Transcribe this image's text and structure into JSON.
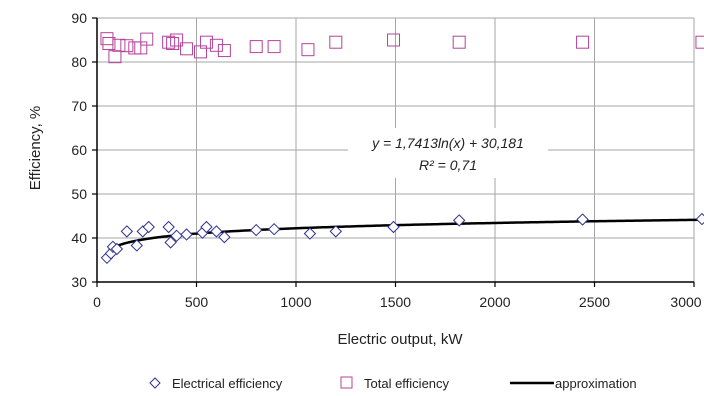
{
  "chart_data": {
    "type": "scatter",
    "xlabel": "Electric output, kW",
    "ylabel": "Efficiency, %",
    "xlim": [
      0,
      3000
    ],
    "ylim": [
      30,
      90
    ],
    "x_ticks": [
      "0",
      "500",
      "1000",
      "1500",
      "2000",
      "2500",
      "3000"
    ],
    "y_ticks": [
      "30",
      "40",
      "50",
      "60",
      "70",
      "80",
      "90"
    ],
    "grid": true,
    "legend_position": "bottom",
    "series": [
      {
        "name": "Electrical efficiency",
        "marker": "diamond",
        "color": "#2e3192",
        "points": [
          [
            50,
            35.5
          ],
          [
            70,
            36.5
          ],
          [
            80,
            38
          ],
          [
            100,
            37.5
          ],
          [
            150,
            41.5
          ],
          [
            200,
            38.3
          ],
          [
            230,
            41.5
          ],
          [
            260,
            42.5
          ],
          [
            360,
            42.5
          ],
          [
            370,
            39
          ],
          [
            400,
            40.5
          ],
          [
            450,
            40.8
          ],
          [
            530,
            41.2
          ],
          [
            550,
            42.5
          ],
          [
            600,
            41.5
          ],
          [
            640,
            40.2
          ],
          [
            800,
            41.8
          ],
          [
            890,
            42
          ],
          [
            1070,
            41
          ],
          [
            1200,
            41.5
          ],
          [
            1490,
            42.5
          ],
          [
            1820,
            44
          ],
          [
            2440,
            44.2
          ],
          [
            3040,
            44.3
          ]
        ]
      },
      {
        "name": "Total efficiency",
        "marker": "square",
        "color": "#b5439b",
        "points": [
          [
            50,
            85.3
          ],
          [
            60,
            84.2
          ],
          [
            90,
            81.2
          ],
          [
            110,
            83.8
          ],
          [
            150,
            83.7
          ],
          [
            190,
            83.2
          ],
          [
            220,
            83.2
          ],
          [
            250,
            85.2
          ],
          [
            360,
            84.5
          ],
          [
            380,
            84.2
          ],
          [
            400,
            85
          ],
          [
            450,
            83
          ],
          [
            520,
            82.3
          ],
          [
            550,
            84.5
          ],
          [
            600,
            83.8
          ],
          [
            640,
            82.6
          ],
          [
            800,
            83.5
          ],
          [
            890,
            83.5
          ],
          [
            1060,
            82.8
          ],
          [
            1200,
            84.5
          ],
          [
            1490,
            85
          ],
          [
            1820,
            84.5
          ],
          [
            2440,
            84.5
          ],
          [
            3040,
            84.5
          ]
        ]
      },
      {
        "name": "approximation",
        "marker": "line",
        "color": "#000000",
        "function": {
          "a": 1.7413,
          "b": 30.181,
          "x_from": 60,
          "x_to": 3050
        }
      }
    ],
    "annotation": {
      "equation": "y = 1,7413ln(x) + 30,181",
      "r_squared": "R² = 0,71"
    }
  }
}
